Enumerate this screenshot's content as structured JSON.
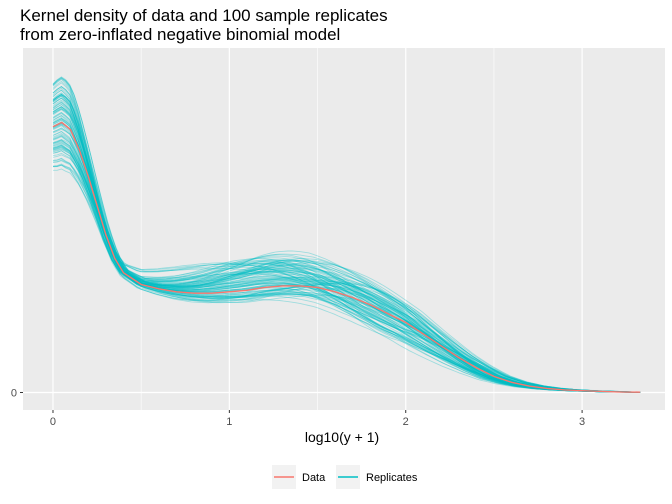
{
  "chart_data": {
    "type": "line",
    "title_lines": [
      "Kernel density of data and 100 sample replicates",
      "from zero-inflated negative binomial model"
    ],
    "xlabel": "log10(y + 1)",
    "ylabel": "",
    "xlim": [
      -0.17,
      3.47
    ],
    "ylim": [
      -0.06,
      1.18
    ],
    "x_ticks": [
      0,
      1,
      2,
      3
    ],
    "x_tick_labels": [
      "0",
      "1",
      "2",
      "3"
    ],
    "y_ticks": [
      0
    ],
    "y_tick_labels": [
      "0"
    ],
    "grid": true,
    "legend_position": "bottom",
    "replicate_count": 100,
    "series": [
      {
        "name": "Data",
        "color": "#F8766D",
        "x": [
          0,
          0.05,
          0.1,
          0.15,
          0.2,
          0.25,
          0.3,
          0.35,
          0.4,
          0.5,
          0.6,
          0.7,
          0.8,
          0.9,
          1.0,
          1.1,
          1.2,
          1.3,
          1.4,
          1.5,
          1.6,
          1.7,
          1.8,
          1.9,
          2.0,
          2.1,
          2.2,
          2.3,
          2.4,
          2.5,
          2.6,
          2.7,
          2.8,
          2.9,
          3.0,
          3.1,
          3.2,
          3.33
        ],
        "y": [
          0.91,
          0.925,
          0.9,
          0.83,
          0.74,
          0.64,
          0.54,
          0.46,
          0.41,
          0.37,
          0.355,
          0.345,
          0.34,
          0.34,
          0.345,
          0.35,
          0.36,
          0.365,
          0.365,
          0.36,
          0.345,
          0.325,
          0.3,
          0.27,
          0.24,
          0.2,
          0.16,
          0.12,
          0.085,
          0.055,
          0.035,
          0.022,
          0.014,
          0.009,
          0.006,
          0.004,
          0.002,
          0.001
        ]
      },
      {
        "name": "Replicates",
        "color": "#00BFC4"
      }
    ]
  }
}
